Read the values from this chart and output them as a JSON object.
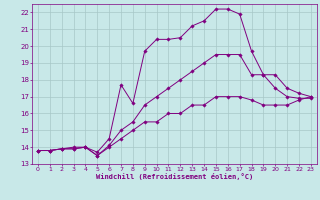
{
  "xlabel": "Windchill (Refroidissement éolien,°C)",
  "bg_color": "#c8e8e8",
  "line_color": "#800080",
  "grid_color": "#a8c8c8",
  "xlim": [
    -0.5,
    23.5
  ],
  "ylim": [
    13,
    22.5
  ],
  "xticks": [
    0,
    1,
    2,
    3,
    4,
    5,
    6,
    7,
    8,
    9,
    10,
    11,
    12,
    13,
    14,
    15,
    16,
    17,
    18,
    19,
    20,
    21,
    22,
    23
  ],
  "yticks": [
    13,
    14,
    15,
    16,
    17,
    18,
    19,
    20,
    21,
    22
  ],
  "lines": [
    {
      "x": [
        0,
        1,
        2,
        3,
        4,
        5,
        6,
        7,
        8,
        9,
        10,
        11,
        12,
        13,
        14,
        15,
        16,
        17,
        18,
        19,
        20,
        21,
        22,
        23
      ],
      "y": [
        13.8,
        13.8,
        13.9,
        14.0,
        14.0,
        13.7,
        14.5,
        17.7,
        16.6,
        19.7,
        20.4,
        20.4,
        20.5,
        21.2,
        21.5,
        22.2,
        22.2,
        21.9,
        19.7,
        18.3,
        17.5,
        17.0,
        16.9,
        16.9
      ]
    },
    {
      "x": [
        0,
        1,
        2,
        3,
        4,
        5,
        6,
        7,
        8,
        9,
        10,
        11,
        12,
        13,
        14,
        15,
        16,
        17,
        18,
        19,
        20,
        21,
        22,
        23
      ],
      "y": [
        13.8,
        13.8,
        13.9,
        13.9,
        14.0,
        13.5,
        14.1,
        15.0,
        15.5,
        16.5,
        17.0,
        17.5,
        18.0,
        18.5,
        19.0,
        19.5,
        19.5,
        19.5,
        18.3,
        18.3,
        18.3,
        17.5,
        17.2,
        17.0
      ]
    },
    {
      "x": [
        0,
        1,
        2,
        3,
        4,
        5,
        6,
        7,
        8,
        9,
        10,
        11,
        12,
        13,
        14,
        15,
        16,
        17,
        18,
        19,
        20,
        21,
        22,
        23
      ],
      "y": [
        13.8,
        13.8,
        13.9,
        13.9,
        14.0,
        13.5,
        14.0,
        14.5,
        15.0,
        15.5,
        15.5,
        16.0,
        16.0,
        16.5,
        16.5,
        17.0,
        17.0,
        17.0,
        16.8,
        16.5,
        16.5,
        16.5,
        16.8,
        17.0
      ]
    }
  ]
}
